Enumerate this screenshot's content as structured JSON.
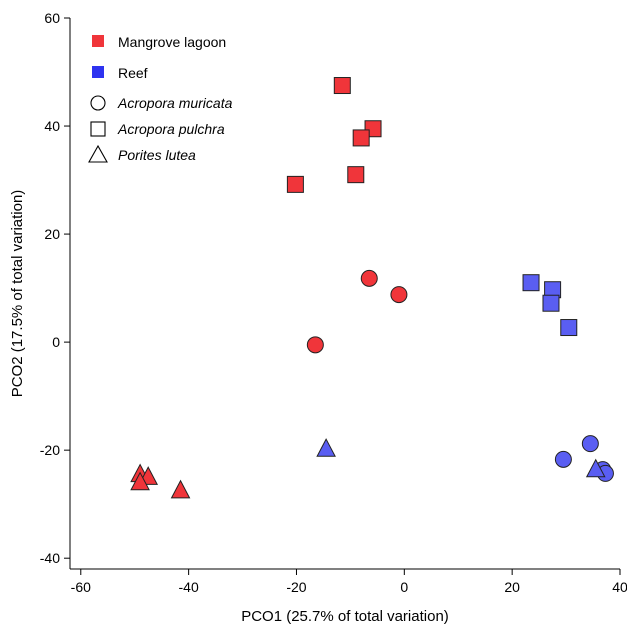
{
  "chart_data": {
    "type": "scatter",
    "xlabel": "PCO1 (25.7% of total variation)",
    "ylabel": "PCO2 (17.5% of total variation)",
    "xlim": [
      -62,
      40
    ],
    "ylim": [
      -42,
      60
    ],
    "xticks": [
      -60,
      -40,
      -20,
      0,
      20,
      40
    ],
    "yticks": [
      -40,
      -20,
      0,
      20,
      40,
      60
    ],
    "grid": false,
    "legend_position": "top-left",
    "colors": {
      "Mangrove lagoon": "#f0353a",
      "Reef": "#5a5ef2"
    },
    "legend": {
      "habitats": [
        {
          "label": "Mangrove lagoon",
          "color": "#f0353a"
        },
        {
          "label": "Reef",
          "color": "#2e33f0"
        }
      ],
      "species": [
        {
          "label": "Acropora muricata",
          "shape": "circle"
        },
        {
          "label": "Acropora pulchra",
          "shape": "square"
        },
        {
          "label": "Porites lutea",
          "shape": "triangle"
        }
      ]
    },
    "points": [
      {
        "x": -11.5,
        "y": 47.5,
        "habitat": "Mangrove lagoon",
        "species": "Acropora pulchra"
      },
      {
        "x": -5.8,
        "y": 39.5,
        "habitat": "Mangrove lagoon",
        "species": "Acropora pulchra"
      },
      {
        "x": -8.0,
        "y": 37.8,
        "habitat": "Mangrove lagoon",
        "species": "Acropora pulchra"
      },
      {
        "x": -20.2,
        "y": 29.2,
        "habitat": "Mangrove lagoon",
        "species": "Acropora pulchra"
      },
      {
        "x": -9.0,
        "y": 31.0,
        "habitat": "Mangrove lagoon",
        "species": "Acropora pulchra"
      },
      {
        "x": -6.5,
        "y": 11.8,
        "habitat": "Mangrove lagoon",
        "species": "Acropora muricata"
      },
      {
        "x": -1.0,
        "y": 8.8,
        "habitat": "Mangrove lagoon",
        "species": "Acropora muricata"
      },
      {
        "x": -16.5,
        "y": -0.5,
        "habitat": "Mangrove lagoon",
        "species": "Acropora muricata"
      },
      {
        "x": -49.0,
        "y": -24.5,
        "habitat": "Mangrove lagoon",
        "species": "Porites lutea"
      },
      {
        "x": -47.5,
        "y": -25.0,
        "habitat": "Mangrove lagoon",
        "species": "Porites lutea"
      },
      {
        "x": -49.0,
        "y": -26.0,
        "habitat": "Mangrove lagoon",
        "species": "Porites lutea"
      },
      {
        "x": -41.5,
        "y": -27.5,
        "habitat": "Mangrove lagoon",
        "species": "Porites lutea"
      },
      {
        "x": 23.5,
        "y": 11.0,
        "habitat": "Reef",
        "species": "Acropora pulchra"
      },
      {
        "x": 27.5,
        "y": 9.7,
        "habitat": "Reef",
        "species": "Acropora pulchra"
      },
      {
        "x": 27.2,
        "y": 7.2,
        "habitat": "Reef",
        "species": "Acropora pulchra"
      },
      {
        "x": 30.5,
        "y": 2.7,
        "habitat": "Reef",
        "species": "Acropora pulchra"
      },
      {
        "x": 34.5,
        "y": -18.8,
        "habitat": "Reef",
        "species": "Acropora muricata"
      },
      {
        "x": 29.5,
        "y": -21.7,
        "habitat": "Reef",
        "species": "Acropora muricata"
      },
      {
        "x": 36.8,
        "y": -23.6,
        "habitat": "Reef",
        "species": "Acropora muricata"
      },
      {
        "x": 37.3,
        "y": -24.3,
        "habitat": "Reef",
        "species": "Acropora muricata"
      },
      {
        "x": -14.5,
        "y": -19.8,
        "habitat": "Reef",
        "species": "Porites lutea"
      },
      {
        "x": 35.5,
        "y": -23.6,
        "habitat": "Reef",
        "species": "Porites lutea"
      }
    ]
  }
}
